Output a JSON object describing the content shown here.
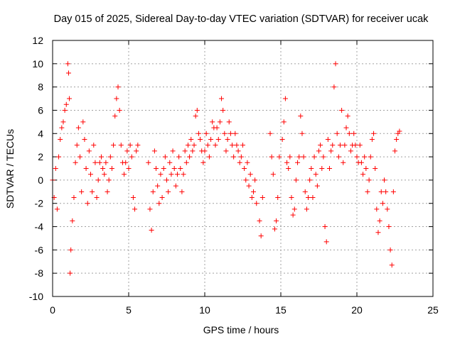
{
  "chart_data": {
    "type": "scatter",
    "title": "Day 015 of 2025, Sidereal Day-to-day VTEC variation (SDTVAR) for receiver ucak",
    "xlabel": "GPS time / hours",
    "ylabel": "SDTVAR / TECUs",
    "xlim": [
      0,
      25
    ],
    "ylim": [
      -10,
      12
    ],
    "x_ticks": [
      0,
      5,
      10,
      15,
      20,
      25
    ],
    "x_tick_labels": [
      "0",
      "5",
      "10",
      "15",
      "20",
      "25"
    ],
    "y_ticks": [
      -10,
      -8,
      -6,
      -4,
      -2,
      0,
      2,
      4,
      6,
      8,
      10,
      12
    ],
    "y_tick_labels": [
      "-10",
      "-8",
      "-6",
      "-4",
      "-2",
      "0",
      "2",
      "4",
      "6",
      "8",
      "10",
      "12"
    ],
    "grid": true,
    "marker": "+",
    "color": "#ff0000",
    "series": [
      {
        "name": "SDTVAR",
        "x": [
          0.0,
          0.1,
          0.2,
          0.3,
          0.4,
          0.5,
          0.6,
          0.7,
          0.8,
          0.9,
          1.0,
          1.05,
          1.1,
          1.15,
          1.2,
          1.3,
          1.4,
          1.5,
          1.6,
          1.7,
          1.8,
          1.9,
          2.0,
          2.1,
          2.2,
          2.3,
          2.4,
          2.5,
          2.6,
          2.7,
          2.8,
          2.9,
          3.0,
          3.1,
          3.2,
          3.3,
          3.4,
          3.5,
          3.6,
          3.7,
          3.8,
          3.9,
          4.0,
          4.1,
          4.2,
          4.3,
          4.4,
          4.5,
          4.6,
          4.7,
          4.8,
          4.9,
          5.0,
          5.1,
          5.2,
          5.3,
          5.4,
          5.5,
          5.6,
          6.3,
          6.4,
          6.5,
          6.6,
          6.7,
          6.8,
          6.9,
          7.0,
          7.1,
          7.2,
          7.3,
          7.4,
          7.5,
          7.6,
          7.7,
          7.8,
          7.9,
          8.0,
          8.1,
          8.2,
          8.3,
          8.4,
          8.5,
          8.6,
          8.7,
          8.8,
          8.9,
          9.0,
          9.1,
          9.2,
          9.3,
          9.4,
          9.5,
          9.6,
          9.7,
          9.8,
          9.9,
          10.0,
          10.1,
          10.2,
          10.3,
          10.4,
          10.5,
          10.6,
          10.7,
          10.8,
          10.9,
          11.0,
          11.1,
          11.2,
          11.3,
          11.4,
          11.5,
          11.6,
          11.7,
          11.8,
          11.9,
          12.0,
          12.1,
          12.2,
          12.3,
          12.4,
          12.5,
          12.6,
          12.7,
          12.8,
          12.9,
          13.0,
          13.1,
          13.2,
          13.3,
          13.4,
          13.6,
          13.7,
          13.8,
          14.3,
          14.4,
          14.5,
          14.6,
          14.7,
          14.8,
          14.9,
          15.1,
          15.2,
          15.3,
          15.4,
          15.5,
          15.6,
          15.7,
          15.8,
          15.9,
          16.0,
          16.1,
          16.2,
          16.3,
          16.4,
          16.5,
          16.6,
          16.7,
          16.8,
          16.9,
          17.0,
          17.1,
          17.2,
          17.3,
          17.4,
          17.5,
          17.6,
          17.7,
          17.8,
          17.9,
          18.0,
          18.1,
          18.2,
          18.3,
          18.4,
          18.5,
          18.6,
          18.7,
          18.8,
          18.9,
          19.0,
          19.1,
          19.2,
          19.3,
          19.4,
          19.5,
          19.6,
          19.7,
          19.8,
          19.9,
          20.0,
          20.1,
          20.2,
          20.3,
          20.4,
          20.5,
          20.6,
          20.7,
          20.8,
          20.9,
          21.0,
          21.1,
          21.2,
          21.3,
          21.4,
          21.5,
          21.6,
          21.7,
          21.8,
          21.9,
          22.0,
          22.1,
          22.2,
          22.3,
          22.4,
          22.5,
          22.6,
          22.7,
          22.8
        ],
        "y": [
          0.0,
          -1.5,
          1.0,
          -2.5,
          2.0,
          3.5,
          4.5,
          5.0,
          6.0,
          6.5,
          10.0,
          9.2,
          7.0,
          -8.0,
          -6.0,
          -3.5,
          -1.5,
          1.5,
          3.0,
          4.5,
          2.0,
          -1.0,
          5.0,
          3.5,
          1.0,
          -2.0,
          2.5,
          0.5,
          -1.0,
          3.0,
          1.5,
          -1.5,
          0.0,
          1.5,
          2.0,
          1.0,
          0.5,
          1.5,
          -1.0,
          0.0,
          2.0,
          1.0,
          3.0,
          5.5,
          7.0,
          8.0,
          6.0,
          3.0,
          1.5,
          0.5,
          1.5,
          2.5,
          1.0,
          3.0,
          2.0,
          -1.5,
          -2.5,
          2.5,
          3.0,
          1.5,
          -2.5,
          -4.3,
          -1.0,
          2.5,
          1.0,
          -0.5,
          -2.0,
          0.5,
          -1.5,
          1.0,
          2.0,
          0.0,
          -1.0,
          1.5,
          0.5,
          2.5,
          1.0,
          -0.5,
          0.5,
          2.0,
          1.0,
          -1.0,
          0.5,
          2.5,
          1.5,
          3.0,
          2.0,
          3.5,
          2.5,
          3.0,
          5.5,
          6.0,
          4.0,
          3.5,
          2.5,
          1.5,
          2.5,
          4.0,
          3.0,
          2.0,
          3.5,
          5.0,
          4.5,
          3.0,
          4.5,
          3.5,
          5.0,
          7.0,
          6.0,
          4.0,
          2.5,
          3.5,
          5.0,
          4.0,
          3.0,
          2.0,
          4.0,
          3.0,
          2.5,
          1.5,
          2.0,
          3.0,
          1.0,
          0.0,
          1.5,
          -0.5,
          0.5,
          -1.5,
          -1.0,
          0.0,
          -2.0,
          -3.5,
          -4.8,
          -1.5,
          4.0,
          2.0,
          0.5,
          -4.2,
          -3.5,
          -1.5,
          2.0,
          3.5,
          5.0,
          7.0,
          1.5,
          1.0,
          2.0,
          -1.5,
          -3.0,
          -2.5,
          0.0,
          1.5,
          2.0,
          5.5,
          4.0,
          2.0,
          -1.0,
          -2.5,
          -1.5,
          0.0,
          1.0,
          -1.5,
          2.0,
          0.5,
          -0.5,
          2.5,
          3.0,
          1.0,
          2.0,
          -4.0,
          -5.3,
          3.5,
          1.0,
          2.5,
          3.0,
          8.0,
          10.0,
          4.0,
          2.0,
          3.0,
          6.0,
          1.5,
          3.0,
          4.5,
          5.5,
          4.0,
          2.5,
          3.0,
          4.0,
          3.0,
          2.0,
          1.5,
          3.0,
          1.5,
          0.5,
          2.0,
          1.0,
          -1.0,
          0.0,
          2.0,
          3.5,
          4.0,
          1.0,
          -2.5,
          -4.5,
          -3.5,
          -1.0,
          -2.0,
          0.0,
          -1.0,
          -2.5,
          -4.0,
          -6.0,
          -7.3,
          -1.0,
          2.5,
          3.5,
          4.0,
          4.2
        ]
      }
    ]
  }
}
